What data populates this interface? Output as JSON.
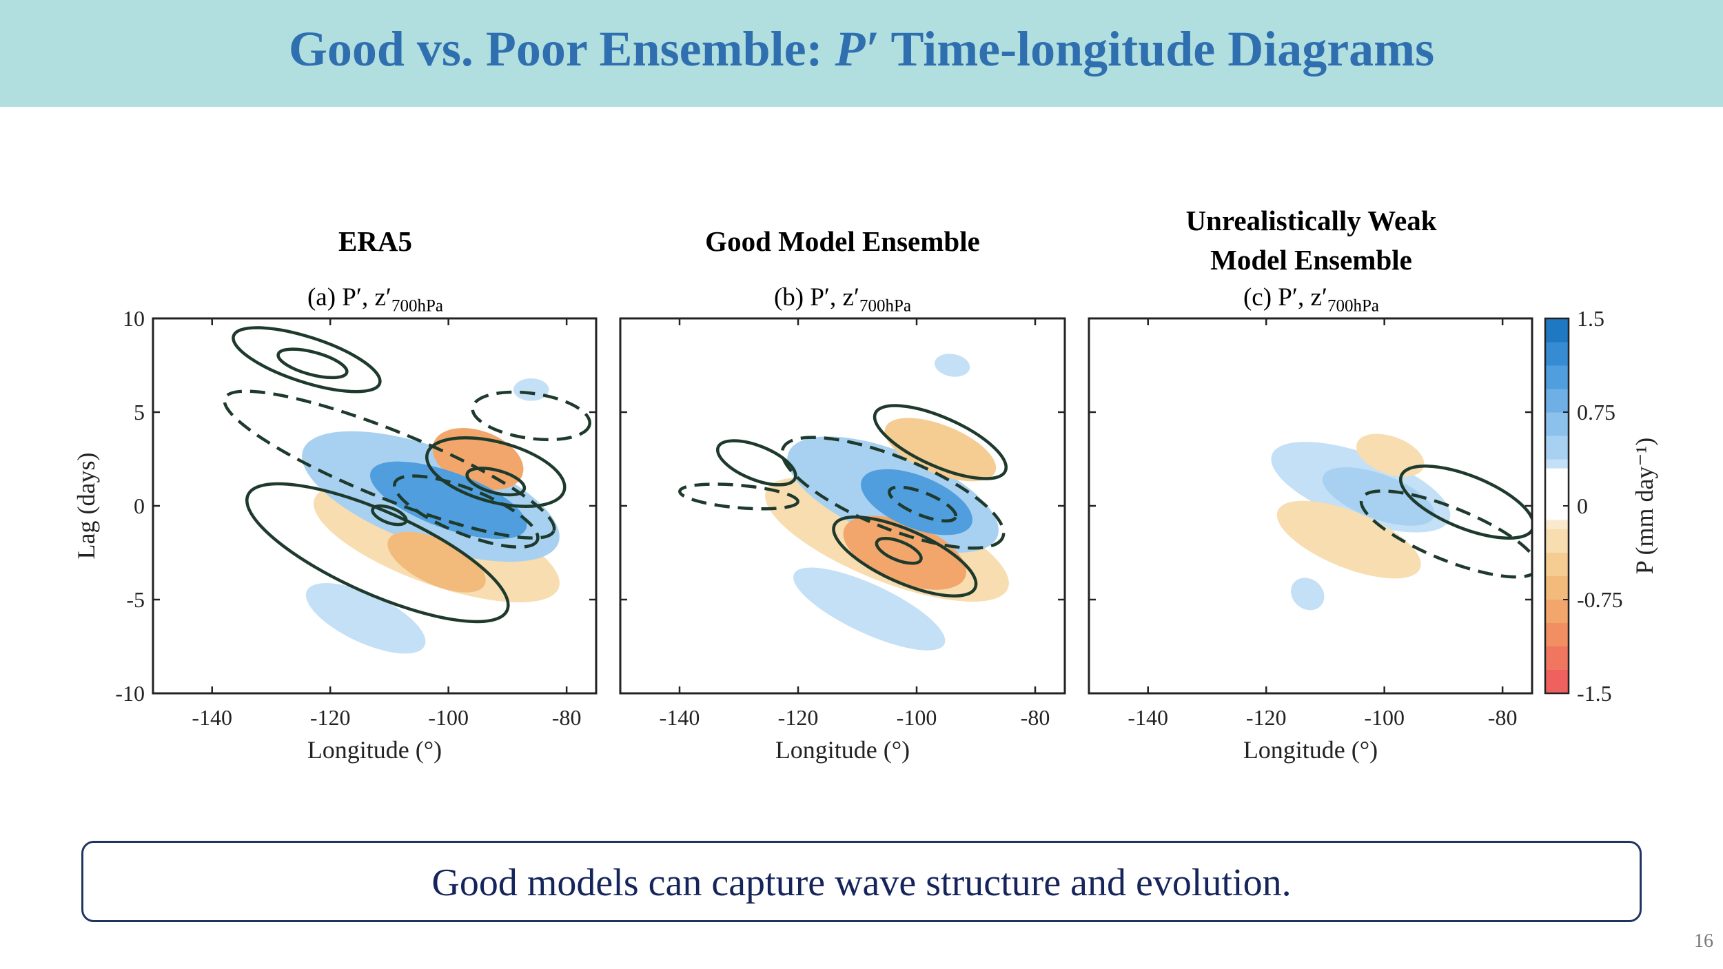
{
  "slide": {
    "title_prefix": "Good vs. Poor Ensemble: ",
    "title_symbol": "P′",
    "title_suffix": " Time-longitude Diagrams",
    "caption": "Good models can capture wave structure and evolution.",
    "page_number": "16"
  },
  "chart_data": [
    {
      "type": "heatmap",
      "title": "ERA5",
      "panel_label": "(a) P′, z′",
      "panel_label_sub": "700hPa",
      "xlabel": "Longitude (°)",
      "ylabel": "Lag (days)",
      "xlim": [
        -150,
        -75
      ],
      "ylim": [
        -10,
        10
      ],
      "xticks": [
        -140,
        -120,
        -100,
        -80
      ],
      "yticks": [
        10,
        5,
        0,
        -5,
        -10
      ],
      "fill_blobs": [
        {
          "sign": "pos",
          "level": 1.1,
          "x": -100,
          "y": 0.3,
          "rx": 14,
          "ry": 1.5,
          "angle": 20
        },
        {
          "sign": "pos",
          "level": 0.45,
          "x": -103,
          "y": 0.5,
          "rx": 23,
          "ry": 2.6,
          "angle": 20
        },
        {
          "sign": "pos",
          "level": 0.3,
          "x": -114,
          "y": -6,
          "rx": 11,
          "ry": 1.3,
          "angle": 25
        },
        {
          "sign": "pos",
          "level": 0.3,
          "x": -86,
          "y": 6.2,
          "rx": 3,
          "ry": 0.6,
          "angle": 0
        },
        {
          "sign": "neg",
          "level": 0.85,
          "x": -95,
          "y": 2.5,
          "rx": 8,
          "ry": 1.5,
          "angle": 20
        },
        {
          "sign": "neg",
          "level": 0.6,
          "x": -102,
          "y": -3,
          "rx": 9,
          "ry": 1.2,
          "angle": 25
        },
        {
          "sign": "neg",
          "level": 0.3,
          "x": -102,
          "y": -2,
          "rx": 22,
          "ry": 2.2,
          "angle": 20
        }
      ],
      "contours": [
        {
          "style": "solid",
          "x": -124,
          "y": 7.8,
          "rx": 13,
          "ry": 1.2,
          "angle": 18
        },
        {
          "style": "solid",
          "x": -123,
          "y": 7.6,
          "rx": 6,
          "ry": 0.6,
          "angle": 15
        },
        {
          "style": "solid",
          "x": -112,
          "y": -2.5,
          "rx": 24,
          "ry": 2.2,
          "angle": 24
        },
        {
          "style": "solid",
          "x": -110,
          "y": -0.5,
          "rx": 3,
          "ry": 0.4,
          "angle": 20
        },
        {
          "style": "solid",
          "x": -92,
          "y": 1.8,
          "rx": 12,
          "ry": 1.6,
          "angle": 15
        },
        {
          "style": "solid",
          "x": -92,
          "y": 1.3,
          "rx": 5,
          "ry": 0.6,
          "angle": 15
        },
        {
          "style": "dashed",
          "x": -110,
          "y": 2.2,
          "rx": 30,
          "ry": 1.8,
          "angle": 22
        },
        {
          "style": "dashed",
          "x": -97,
          "y": -0.3,
          "rx": 13,
          "ry": 1.2,
          "angle": 22
        },
        {
          "style": "dashed",
          "x": -86,
          "y": 4.8,
          "rx": 10,
          "ry": 1.2,
          "angle": 8
        }
      ]
    },
    {
      "type": "heatmap",
      "title": "Good Model Ensemble",
      "panel_label": "(b) P′, z′",
      "panel_label_sub": "700hPa",
      "xlabel": "Longitude (°)",
      "ylabel": "",
      "xlim": [
        -150,
        -75
      ],
      "ylim": [
        -10,
        10
      ],
      "xticks": [
        -140,
        -120,
        -100,
        -80
      ],
      "yticks": [
        10,
        5,
        0,
        -5,
        -10
      ],
      "fill_blobs": [
        {
          "sign": "pos",
          "level": 1.1,
          "x": -100,
          "y": 0.2,
          "rx": 10,
          "ry": 1.4,
          "angle": 22
        },
        {
          "sign": "pos",
          "level": 0.45,
          "x": -104,
          "y": 0.6,
          "rx": 19,
          "ry": 2.3,
          "angle": 22
        },
        {
          "sign": "pos",
          "level": 0.3,
          "x": -108,
          "y": -5.5,
          "rx": 14,
          "ry": 1.3,
          "angle": 25
        },
        {
          "sign": "pos",
          "level": 0.3,
          "x": -94,
          "y": 7.5,
          "rx": 3,
          "ry": 0.6,
          "angle": 10
        },
        {
          "sign": "neg",
          "level": 0.8,
          "x": -102,
          "y": -2.5,
          "rx": 11,
          "ry": 1.6,
          "angle": 22
        },
        {
          "sign": "neg",
          "level": 0.3,
          "x": -105,
          "y": -1.8,
          "rx": 22,
          "ry": 2.2,
          "angle": 22
        },
        {
          "sign": "neg",
          "level": 0.55,
          "x": -96,
          "y": 3,
          "rx": 10,
          "ry": 1.3,
          "angle": 22
        }
      ],
      "contours": [
        {
          "style": "solid",
          "x": -127,
          "y": 2.3,
          "rx": 7,
          "ry": 0.9,
          "angle": 22
        },
        {
          "style": "solid",
          "x": -96,
          "y": 3.4,
          "rx": 12,
          "ry": 1.3,
          "angle": 24
        },
        {
          "style": "solid",
          "x": -102,
          "y": -2.7,
          "rx": 13,
          "ry": 1.4,
          "angle": 24
        },
        {
          "style": "solid",
          "x": -103,
          "y": -2.4,
          "rx": 4,
          "ry": 0.5,
          "angle": 22
        },
        {
          "style": "dashed",
          "x": -104,
          "y": 0.7,
          "rx": 20,
          "ry": 1.9,
          "angle": 22
        },
        {
          "style": "dashed",
          "x": -130,
          "y": 0.5,
          "rx": 10,
          "ry": 0.6,
          "angle": 5
        },
        {
          "style": "dashed",
          "x": -99,
          "y": 0.1,
          "rx": 6,
          "ry": 0.6,
          "angle": 22
        }
      ]
    },
    {
      "type": "heatmap",
      "title": "Unrealistically Weak Model Ensemble",
      "title_line1": "Unrealistically Weak",
      "title_line2": "Model Ensemble",
      "panel_label": "(c) P′, z′",
      "panel_label_sub": "700hPa",
      "xlabel": "Longitude (°)",
      "ylabel": "",
      "xlim": [
        -150,
        -75
      ],
      "ylim": [
        -10,
        10
      ],
      "xticks": [
        -140,
        -120,
        -100,
        -80
      ],
      "yticks": [
        10,
        5,
        0,
        -5,
        -10
      ],
      "fill_blobs": [
        {
          "sign": "pos",
          "level": 0.5,
          "x": -101,
          "y": 0.5,
          "rx": 10,
          "ry": 1.2,
          "angle": 20
        },
        {
          "sign": "pos",
          "level": 0.3,
          "x": -104,
          "y": 1.0,
          "rx": 16,
          "ry": 1.8,
          "angle": 20
        },
        {
          "sign": "pos",
          "level": 0.3,
          "x": -113,
          "y": -4.7,
          "rx": 3,
          "ry": 0.8,
          "angle": 40
        },
        {
          "sign": "neg",
          "level": 0.3,
          "x": -106,
          "y": -1.8,
          "rx": 13,
          "ry": 1.5,
          "angle": 22
        },
        {
          "sign": "neg",
          "level": 0.3,
          "x": -99,
          "y": 2.7,
          "rx": 6,
          "ry": 1.0,
          "angle": 20
        }
      ],
      "contours": [
        {
          "style": "solid",
          "x": -86,
          "y": 0.2,
          "rx": 12,
          "ry": 1.4,
          "angle": 22
        },
        {
          "style": "dashed",
          "x": -89,
          "y": -1.5,
          "rx": 16,
          "ry": 1.4,
          "angle": 22
        }
      ]
    }
  ],
  "colorbar": {
    "label": "P (mm day⁻¹)",
    "ticks": [
      "1.5",
      "0.75",
      "0",
      "-0.75",
      "-1.5"
    ],
    "pos_colors": [
      "#ddeefa",
      "#c4e0f6",
      "#a8d1f1",
      "#8cc1ec",
      "#6eb0e6",
      "#509edd",
      "#358cd2",
      "#1f78c2"
    ],
    "neg_colors": [
      "#faeacd",
      "#f7ddb0",
      "#f5cd93",
      "#f3bb7b",
      "#f2a66b",
      "#f18e62",
      "#f0765f",
      "#ef615f"
    ]
  }
}
